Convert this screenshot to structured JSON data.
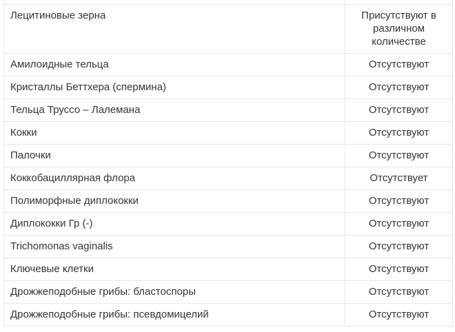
{
  "table": {
    "rows": [
      {
        "name": "",
        "value": ""
      },
      {
        "name": "Лецитиновые зерна",
        "value": "Присутствуют в различном количестве"
      },
      {
        "name": "Амилоидные тельца",
        "value": "Отсутствуют"
      },
      {
        "name": "Кристаллы Беттхера (спермина)",
        "value": "Отсутствуют"
      },
      {
        "name": "Тельца Труссо – Лалемана",
        "value": "Отсутствуют"
      },
      {
        "name": "Кокки",
        "value": "Отсутствуют"
      },
      {
        "name": "Палочки",
        "value": "Отсутствуют"
      },
      {
        "name": "Коккобациллярная флора",
        "value": "Отсутствует"
      },
      {
        "name": "Полиморфные диплококки",
        "value": "Отсутствуют"
      },
      {
        "name": "Диплококки Гр (-)",
        "value": "Отсутствуют"
      },
      {
        "name": "Trichomonas vaginalis",
        "value": "Отсутствуют"
      },
      {
        "name": "Ключевые клетки",
        "value": "Отсутствуют"
      },
      {
        "name": "Дрожжеподобные грибы: бластоспоры",
        "value": "Отсутствуют"
      },
      {
        "name": "Дрожжеподобные грибы: псевдомицелий",
        "value": "Отсутствуют"
      }
    ]
  }
}
